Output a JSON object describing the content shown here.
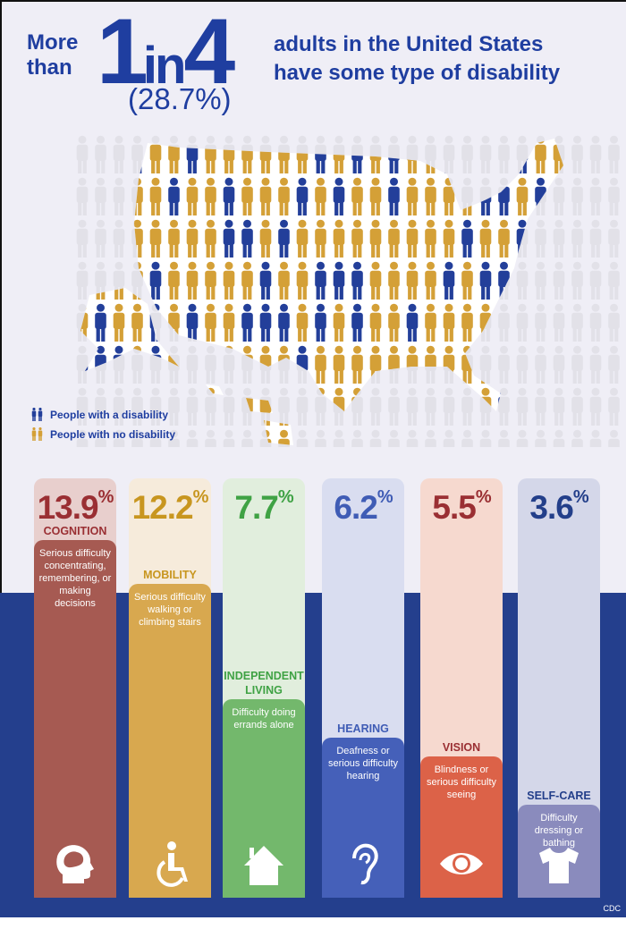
{
  "headline": {
    "lead": "More than",
    "big_1": "1",
    "big_in": "in",
    "big_4": "4",
    "percent": "(28.7%)",
    "rest_line1": "adults in the United States",
    "rest_line2": "have some type of disability"
  },
  "legend": [
    {
      "label": "People with a disability",
      "color": "#233f9a"
    },
    {
      "label": "People with no disability",
      "color": "#d4a037"
    }
  ],
  "source": "CDC",
  "chart_data": {
    "type": "bar",
    "title": "",
    "unit": "%",
    "categories": [
      "COGNITION",
      "MOBILITY",
      "INDEPENDENT LIVING",
      "HEARING",
      "VISION",
      "SELF-CARE"
    ],
    "values": [
      13.9,
      12.2,
      7.7,
      6.2,
      5.5,
      3.6
    ],
    "value_labels": [
      "13.9",
      "12.2",
      "7.7",
      "6.2",
      "5.5",
      "3.6"
    ],
    "percent_sign": "%",
    "descriptions": [
      "Serious difficulty concentrating, remembering, or making decisions",
      "Serious difficulty walking or climbing stairs",
      "Difficulty doing errands alone",
      "Deafness or serious difficulty hearing",
      "Blindness or serious difficulty seeing",
      "Difficulty dressing or bathing"
    ],
    "icons": [
      "brain-head-icon",
      "wheelchair-icon",
      "house-icon",
      "ear-icon",
      "eye-icon",
      "shirt-icon"
    ],
    "colors": {
      "light": [
        "#e8cfcd",
        "#f6ebdb",
        "#e1eedd",
        "#d9ddf0",
        "#f6d9cf",
        "#d4d7e9"
      ],
      "dark": [
        "#a65a52",
        "#d8a84f",
        "#73b86c",
        "#4560b9",
        "#dc6248",
        "#8a8bbd"
      ],
      "text": [
        "#9a2f33",
        "#c8961f",
        "#3fa244",
        "#3f5cb5",
        "#9a2f33",
        "#233f8a"
      ]
    },
    "ylim": [
      0,
      16
    ],
    "grid": false,
    "legend": "none"
  }
}
